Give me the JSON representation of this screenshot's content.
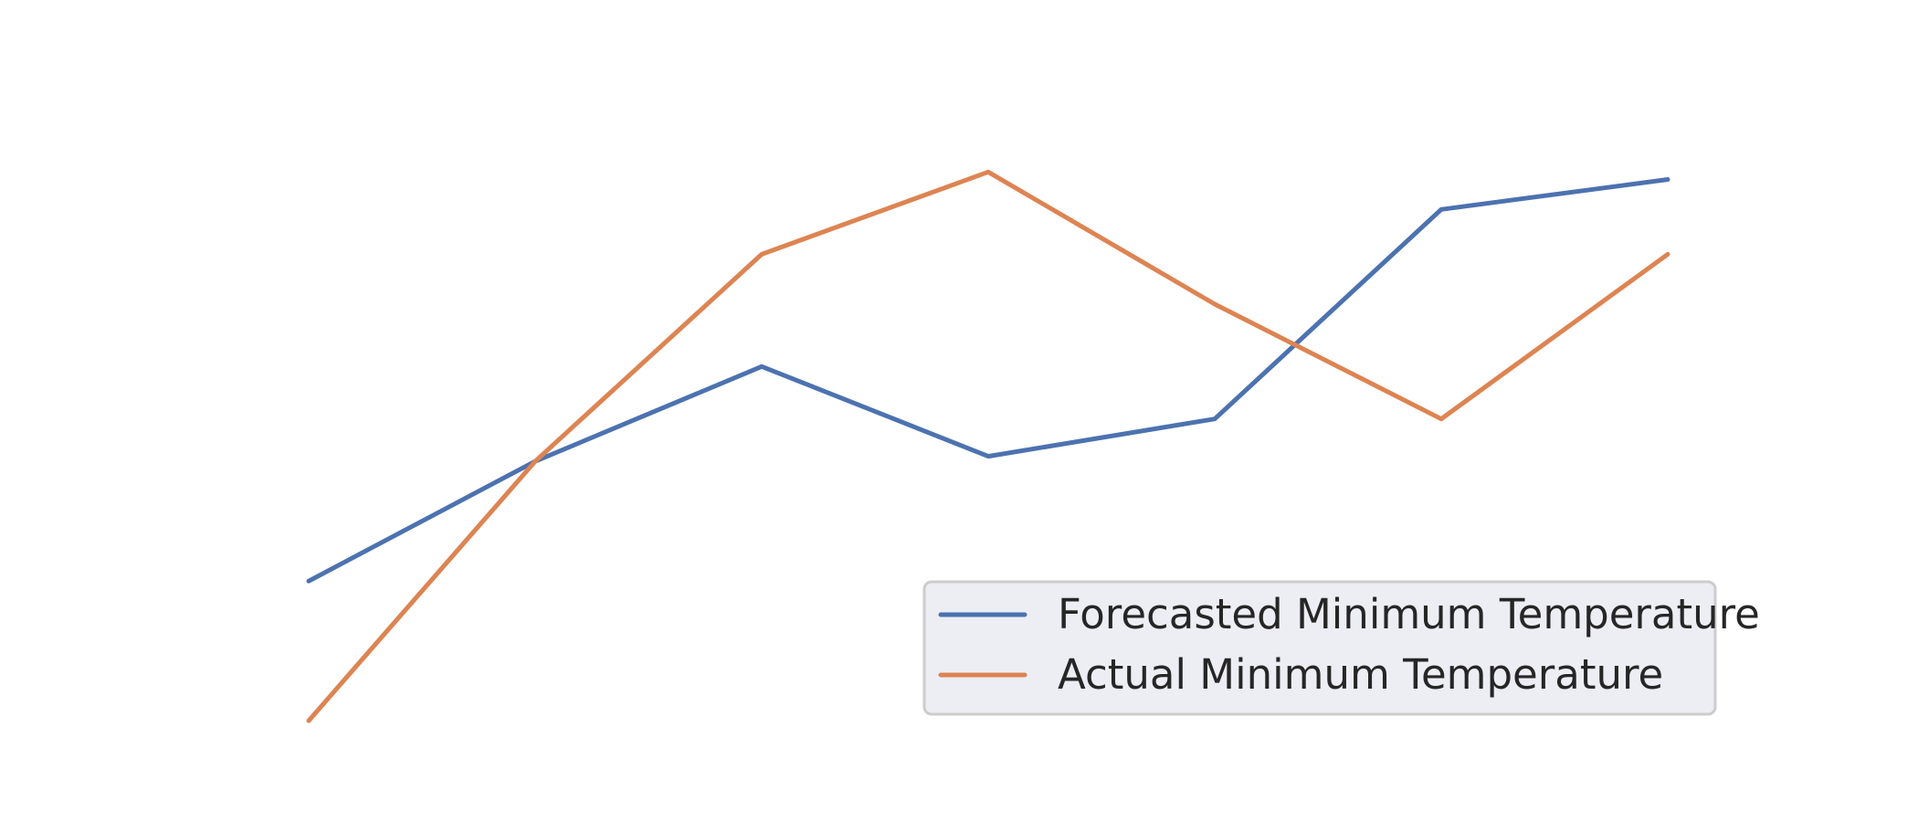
{
  "chart_data": {
    "type": "line",
    "x": [
      0,
      1,
      2,
      3,
      4,
      5,
      6
    ],
    "ylim": [
      0,
      13
    ],
    "grid": false,
    "legend": "bottom-right",
    "series": [
      {
        "name": "Forecasted Minimum Temperature",
        "color": "#4c72b0",
        "values": [
          3.0,
          5.4,
          7.3,
          5.5,
          6.25,
          10.45,
          11.05
        ]
      },
      {
        "name": "Actual Minimum Temperature",
        "color": "#dd8452",
        "values": [
          0.2,
          5.4,
          9.55,
          11.2,
          8.55,
          6.25,
          9.55
        ]
      }
    ]
  }
}
